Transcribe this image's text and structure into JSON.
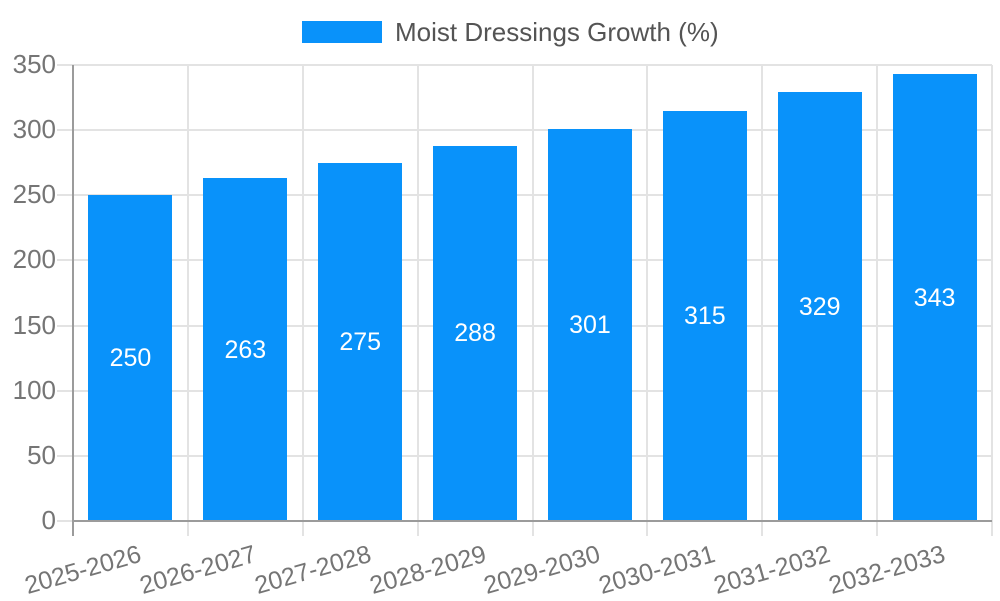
{
  "legend": {
    "label": "Moist Dressings Growth (%)"
  },
  "chart_data": {
    "type": "bar",
    "title": "",
    "legend_entries": [
      "Moist Dressings Growth (%)"
    ],
    "legend_position": "top-center",
    "categories": [
      "2025-2026",
      "2026-2027",
      "2027-2028",
      "2028-2029",
      "2029-2030",
      "2030-2031",
      "2031-2032",
      "2032-2033"
    ],
    "values": [
      250,
      263,
      275,
      288,
      301,
      315,
      329,
      343
    ],
    "bar_value_labels": [
      "250",
      "263",
      "275",
      "288",
      "301",
      "315",
      "329",
      "343"
    ],
    "xlabel": "",
    "ylabel": "",
    "ylim": [
      0,
      350
    ],
    "yticks": [
      0,
      50,
      100,
      150,
      200,
      250,
      300,
      350
    ],
    "grid": true,
    "x_tick_rotation_deg": -16
  },
  "colors": {
    "bar": "#0992fa",
    "grid": "#e3e3e3",
    "axis": "#9b9b9b",
    "tick_label": "#757575",
    "legend_text": "#545454",
    "bar_label": "#ffffff",
    "background": "#ffffff"
  }
}
